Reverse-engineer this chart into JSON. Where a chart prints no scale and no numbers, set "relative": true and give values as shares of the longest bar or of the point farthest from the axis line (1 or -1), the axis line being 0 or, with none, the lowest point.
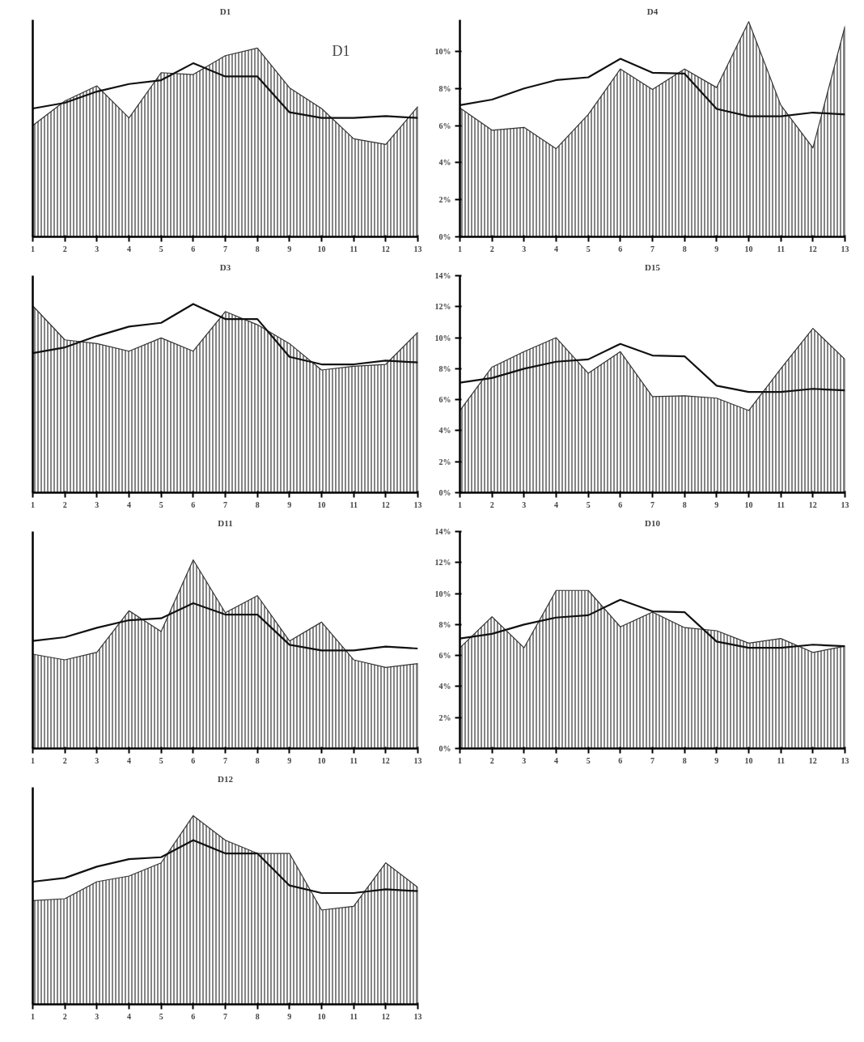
{
  "chart_data": [
    {
      "type": "area",
      "title": "D1",
      "annotations": [
        "D1"
      ],
      "relative": true,
      "x": [
        1,
        2,
        3,
        4,
        5,
        6,
        7,
        8,
        9,
        10,
        11,
        12,
        13
      ],
      "xlim": [
        1,
        13
      ],
      "xticks": [
        1,
        2,
        3,
        4,
        5,
        6,
        7,
        8,
        9,
        10,
        11,
        12,
        13
      ],
      "series": [
        {
          "color": "#333333",
          "values": [
            0.59,
            0.72,
            0.8,
            0.63,
            0.87,
            0.86,
            0.96,
            1.0,
            0.79,
            0.68,
            0.52,
            0.49,
            0.69
          ]
        },
        {
          "type": "line",
          "color": "#111111",
          "values": [
            0.68,
            0.71,
            0.77,
            0.81,
            0.83,
            0.92,
            0.85,
            0.85,
            0.66,
            0.63,
            0.63,
            0.64,
            0.63
          ]
        }
      ]
    },
    {
      "type": "area",
      "title": "D4",
      "x": [
        1,
        2,
        3,
        4,
        5,
        6,
        7,
        8,
        9,
        10,
        11,
        12,
        13
      ],
      "xlim": [
        1,
        13
      ],
      "xticks": [
        1,
        2,
        3,
        4,
        5,
        6,
        7,
        8,
        9,
        10,
        11,
        12,
        13
      ],
      "ylim": [
        0,
        11.7
      ],
      "yticks": [
        {
          "value": 0,
          "label": "0%"
        },
        {
          "value": 2,
          "label": "2%"
        },
        {
          "value": 4,
          "label": "4%"
        },
        {
          "value": 6,
          "label": "6%"
        },
        {
          "value": 8,
          "label": "8%"
        },
        {
          "value": 10,
          "label": "10%"
        }
      ],
      "series": [
        {
          "color": "#333333",
          "values": [
            6.95,
            5.75,
            5.9,
            4.75,
            6.6,
            9.05,
            7.95,
            9.05,
            8.05,
            11.6,
            7.1,
            4.8,
            11.35
          ]
        },
        {
          "type": "line",
          "color": "#111111",
          "values": [
            7.1,
            7.4,
            8.0,
            8.45,
            8.6,
            9.6,
            8.85,
            8.8,
            6.9,
            6.5,
            6.5,
            6.7,
            6.6
          ]
        }
      ]
    },
    {
      "type": "area",
      "title": "D3",
      "relative": true,
      "x": [
        1,
        2,
        3,
        4,
        5,
        6,
        7,
        8,
        9,
        10,
        11,
        12,
        13
      ],
      "xlim": [
        1,
        13
      ],
      "xticks": [
        1,
        2,
        3,
        4,
        5,
        6,
        7,
        8,
        9,
        10,
        11,
        12,
        13
      ],
      "series": [
        {
          "color": "#333333",
          "values": [
            0.99,
            0.81,
            0.79,
            0.75,
            0.82,
            0.75,
            0.96,
            0.89,
            0.79,
            0.65,
            0.67,
            0.68,
            0.85
          ]
        },
        {
          "type": "line",
          "color": "#111111",
          "values": [
            0.74,
            0.77,
            0.83,
            0.88,
            0.9,
            1.0,
            0.92,
            0.92,
            0.72,
            0.68,
            0.68,
            0.7,
            0.69
          ]
        }
      ]
    },
    {
      "type": "area",
      "title": "D15",
      "x": [
        1,
        2,
        3,
        4,
        5,
        6,
        7,
        8,
        9,
        10,
        11,
        12,
        13
      ],
      "xlim": [
        1,
        13
      ],
      "xticks": [
        1,
        2,
        3,
        4,
        5,
        6,
        7,
        8,
        9,
        10,
        11,
        12,
        13
      ],
      "ylim": [
        0,
        14
      ],
      "yticks": [
        {
          "value": 0,
          "label": "0%"
        },
        {
          "value": 2,
          "label": "2%"
        },
        {
          "value": 4,
          "label": "4%"
        },
        {
          "value": 6,
          "label": "6%"
        },
        {
          "value": 8,
          "label": "8%"
        },
        {
          "value": 10,
          "label": "10%"
        },
        {
          "value": 12,
          "label": "12%"
        },
        {
          "value": 14,
          "label": "14%"
        }
      ],
      "series": [
        {
          "color": "#333333",
          "values": [
            5.3,
            8.1,
            9.1,
            10.0,
            7.7,
            9.1,
            6.2,
            6.25,
            6.1,
            5.3,
            8.0,
            10.6,
            8.6
          ]
        },
        {
          "type": "line",
          "color": "#111111",
          "values": [
            7.1,
            7.4,
            8.0,
            8.45,
            8.6,
            9.6,
            8.85,
            8.8,
            6.9,
            6.5,
            6.5,
            6.7,
            6.6
          ]
        }
      ]
    },
    {
      "type": "area",
      "title": "D11",
      "relative": true,
      "x": [
        1,
        2,
        3,
        4,
        5,
        6,
        7,
        8,
        9,
        10,
        11,
        12,
        13
      ],
      "xlim": [
        1,
        13
      ],
      "xticks": [
        1,
        2,
        3,
        4,
        5,
        6,
        7,
        8,
        9,
        10,
        11,
        12,
        13
      ],
      "series": [
        {
          "color": "#333333",
          "values": [
            0.5,
            0.47,
            0.51,
            0.73,
            0.62,
            1.0,
            0.72,
            0.81,
            0.57,
            0.67,
            0.47,
            0.43,
            0.45
          ]
        },
        {
          "type": "line",
          "color": "#111111",
          "values": [
            0.57,
            0.59,
            0.64,
            0.68,
            0.69,
            0.77,
            0.71,
            0.71,
            0.55,
            0.52,
            0.52,
            0.54,
            0.53
          ]
        }
      ]
    },
    {
      "type": "area",
      "title": "D10",
      "x": [
        1,
        2,
        3,
        4,
        5,
        6,
        7,
        8,
        9,
        10,
        11,
        12,
        13
      ],
      "xlim": [
        1,
        13
      ],
      "xticks": [
        1,
        2,
        3,
        4,
        5,
        6,
        7,
        8,
        9,
        10,
        11,
        12,
        13
      ],
      "ylim": [
        0,
        14
      ],
      "yticks": [
        {
          "value": 0,
          "label": "0%"
        },
        {
          "value": 2,
          "label": "2%"
        },
        {
          "value": 4,
          "label": "4%"
        },
        {
          "value": 6,
          "label": "6%"
        },
        {
          "value": 8,
          "label": "8%"
        },
        {
          "value": 10,
          "label": "10%"
        },
        {
          "value": 12,
          "label": "12%"
        },
        {
          "value": 14,
          "label": "14%"
        }
      ],
      "series": [
        {
          "color": "#333333",
          "values": [
            6.5,
            8.5,
            6.5,
            10.2,
            10.2,
            7.85,
            8.8,
            7.8,
            7.6,
            6.8,
            7.1,
            6.2,
            6.6
          ]
        },
        {
          "type": "line",
          "color": "#111111",
          "values": [
            7.1,
            7.4,
            8.0,
            8.45,
            8.6,
            9.6,
            8.85,
            8.8,
            6.9,
            6.5,
            6.5,
            6.7,
            6.6
          ]
        }
      ]
    },
    {
      "type": "area",
      "title": "D12",
      "relative": true,
      "x": [
        1,
        2,
        3,
        4,
        5,
        6,
        7,
        8,
        9,
        10,
        11,
        12,
        13
      ],
      "xlim": [
        1,
        13
      ],
      "xticks": [
        1,
        2,
        3,
        4,
        5,
        6,
        7,
        8,
        9,
        10,
        11,
        12,
        13
      ],
      "series": [
        {
          "color": "#333333",
          "values": [
            0.55,
            0.56,
            0.65,
            0.68,
            0.75,
            1.0,
            0.87,
            0.8,
            0.8,
            0.5,
            0.52,
            0.75,
            0.62
          ]
        },
        {
          "type": "line",
          "color": "#111111",
          "values": [
            0.65,
            0.67,
            0.73,
            0.77,
            0.78,
            0.87,
            0.8,
            0.8,
            0.63,
            0.59,
            0.59,
            0.61,
            0.6
          ]
        }
      ]
    }
  ]
}
